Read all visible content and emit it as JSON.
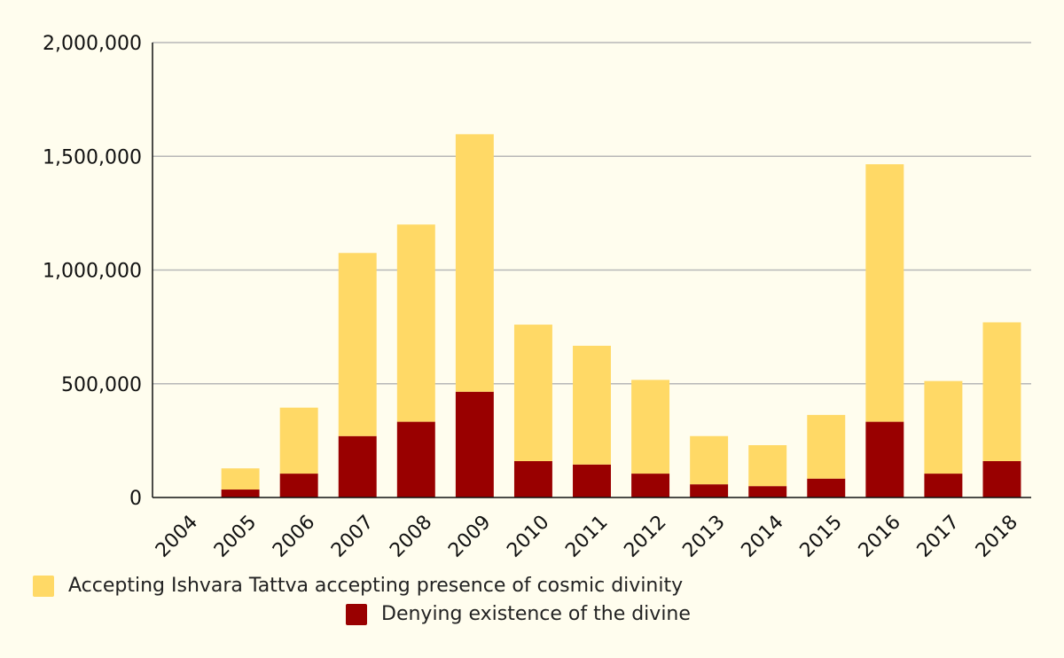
{
  "chart_data": {
    "type": "bar",
    "stacked": true,
    "categories": [
      "2004",
      "2005",
      "2006",
      "2007",
      "2008",
      "2009",
      "2010",
      "2011",
      "2012",
      "2013",
      "2014",
      "2015",
      "2016",
      "2017",
      "2018"
    ],
    "series": [
      {
        "name": "Denying existence of the divine",
        "color": "#990000",
        "values": [
          0,
          35000,
          105000,
          270000,
          333000,
          465000,
          160000,
          145000,
          105000,
          58000,
          50000,
          83000,
          333000,
          105000,
          160000
        ]
      },
      {
        "name": "Accepting Ishvara Tattva accepting presence of cosmic divinity",
        "color": "#ffd966",
        "values": [
          0,
          93000,
          290000,
          805000,
          867000,
          1132000,
          600000,
          522000,
          412000,
          212000,
          180000,
          280000,
          1132000,
          407000,
          610000
        ]
      }
    ],
    "ylim": [
      0,
      2000000
    ],
    "yticks": [
      0,
      500000,
      1000000,
      1500000,
      2000000
    ],
    "ytick_labels": [
      "0",
      "500,000",
      "1,000,000",
      "1,500,000",
      "2,000,000"
    ],
    "grid": true,
    "legend_position": "bottom",
    "title": "",
    "xlabel": "",
    "ylabel": ""
  },
  "legend": {
    "items": [
      {
        "label": "Accepting Ishvara Tattva accepting presence of cosmic divinity",
        "color": "#ffd966"
      },
      {
        "label": "Denying existence of the divine",
        "color": "#990000"
      }
    ]
  }
}
